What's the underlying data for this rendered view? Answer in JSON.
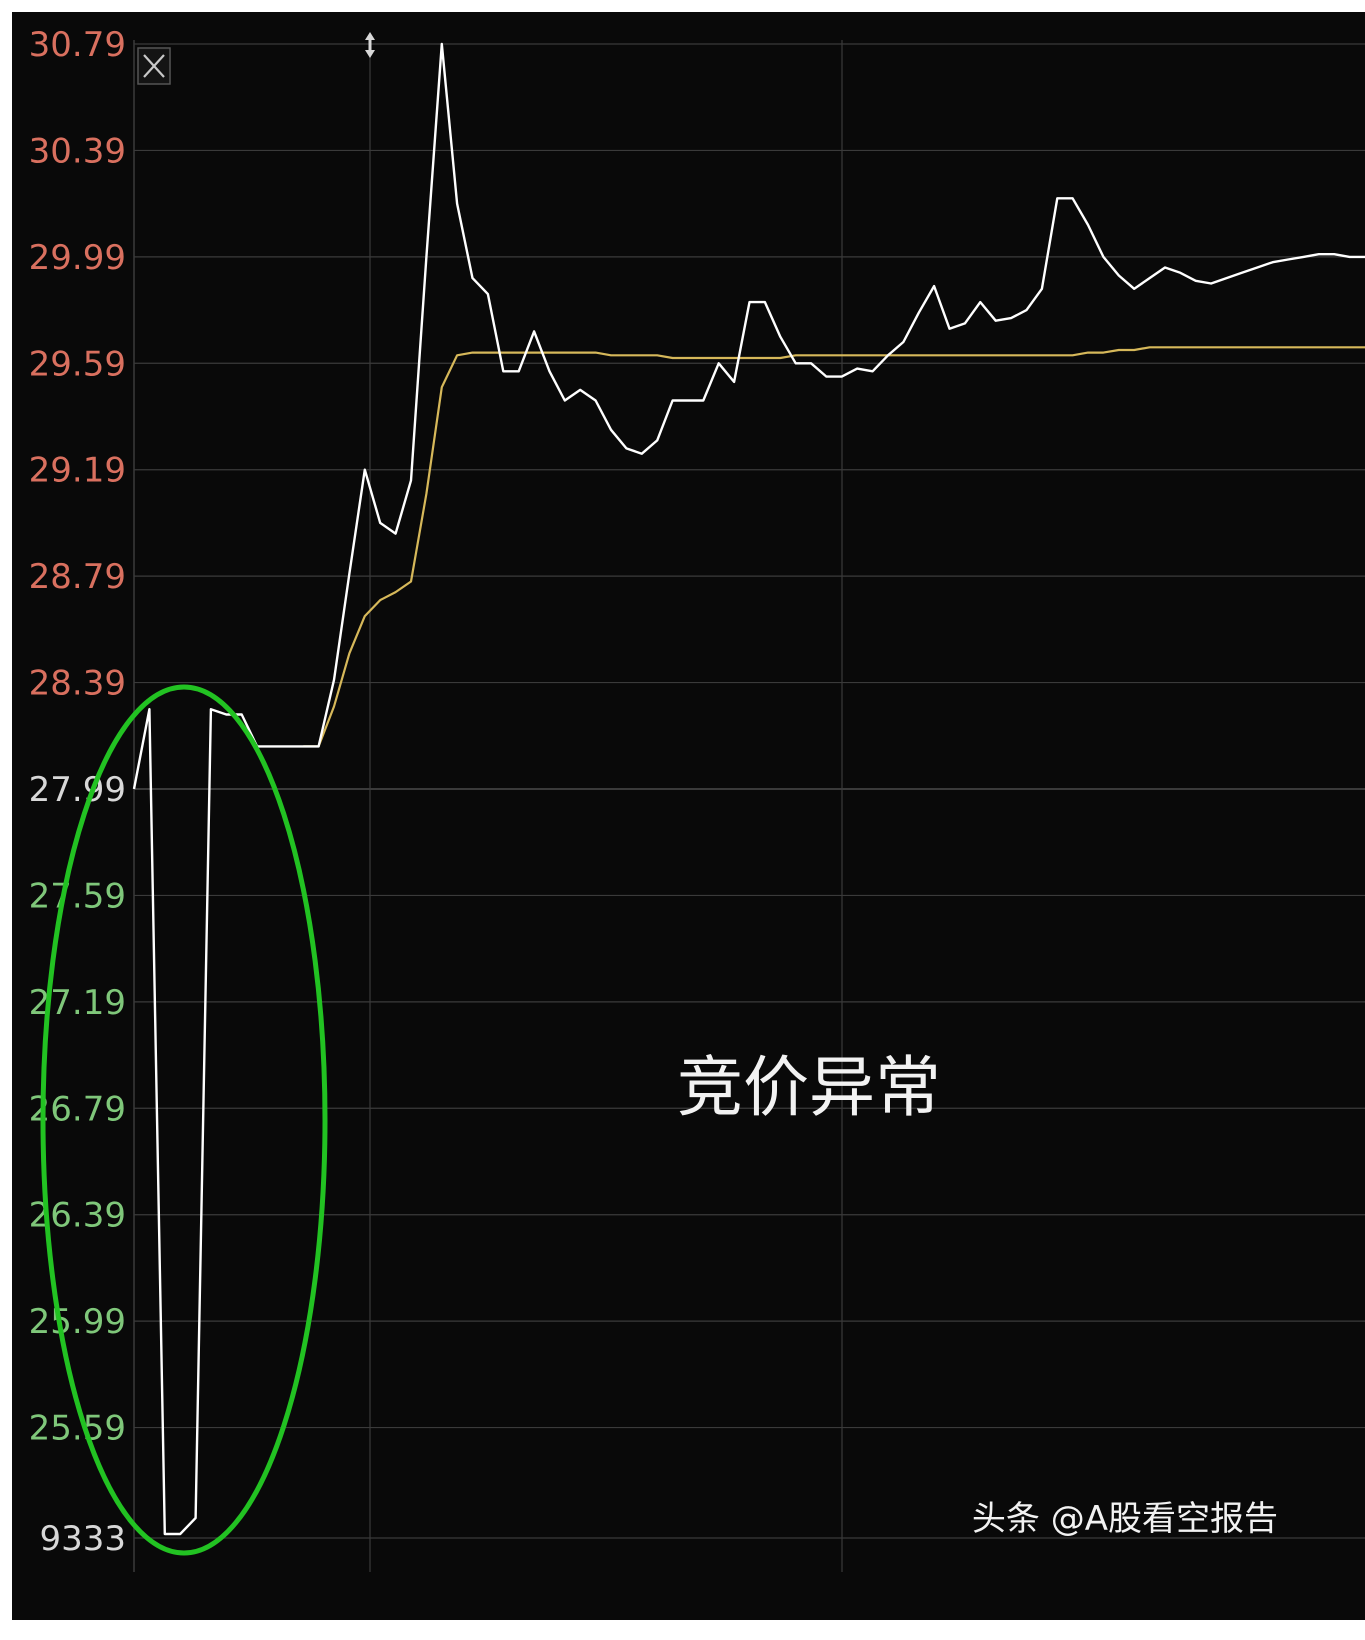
{
  "chart_data": {
    "type": "line",
    "title": "",
    "xlabel": "",
    "ylabel": "",
    "ylim": [
      25.19,
      30.79
    ],
    "y_ticks": [
      "30.79",
      "30.39",
      "29.99",
      "29.59",
      "29.19",
      "28.79",
      "28.39",
      "27.99",
      "27.59",
      "27.19",
      "26.79",
      "26.39",
      "25.99",
      "25.59"
    ],
    "y_ticks_up": [
      "30.79",
      "30.39",
      "29.99",
      "29.59",
      "29.19",
      "28.79",
      "28.39"
    ],
    "y_ticks_down": [
      "27.99",
      "27.59",
      "27.19",
      "26.79",
      "26.39",
      "25.99",
      "25.59"
    ],
    "bottom_label": "9333",
    "grid": true,
    "x": [
      0,
      3,
      6,
      9,
      12,
      15,
      18,
      21,
      24,
      27,
      30,
      33,
      36,
      39,
      42,
      45,
      48,
      51,
      54,
      57,
      60,
      63,
      66,
      69,
      72,
      75,
      78,
      81,
      84,
      87,
      90,
      93,
      96,
      99,
      102,
      105,
      108,
      111,
      114,
      117,
      120,
      123,
      126,
      129,
      132,
      135,
      138,
      141,
      144,
      147,
      150,
      153,
      156,
      159,
      162,
      165,
      168,
      171,
      174,
      177,
      180,
      183,
      186,
      189,
      192,
      195,
      198,
      201,
      204,
      207,
      210,
      213,
      216,
      219,
      222,
      225,
      228,
      231,
      234,
      237,
      240
    ],
    "series": [
      {
        "name": "",
        "color": "#ffffff",
        "values": [
          27.99,
          28.29,
          25.19,
          25.19,
          25.25,
          28.29,
          28.27,
          28.27,
          28.15,
          28.15,
          28.15,
          28.15,
          28.15,
          28.4,
          28.8,
          29.19,
          28.99,
          28.95,
          29.15,
          29.99,
          30.79,
          30.19,
          29.91,
          29.85,
          29.56,
          29.56,
          29.71,
          29.56,
          29.45,
          29.49,
          29.45,
          29.34,
          29.27,
          29.25,
          29.3,
          29.45,
          29.45,
          29.45,
          29.59,
          29.52,
          29.82,
          29.82,
          29.69,
          29.59,
          29.59,
          29.54,
          29.54,
          29.57,
          29.56,
          29.62,
          29.67,
          29.78,
          29.88,
          29.72,
          29.74,
          29.82,
          29.75,
          29.76,
          29.79,
          29.87,
          30.21,
          30.21,
          30.11,
          29.99,
          29.92,
          29.87,
          29.91,
          29.95,
          29.93,
          29.9,
          29.89,
          29.91,
          29.93,
          29.95,
          29.97,
          29.98,
          29.99,
          30.0,
          30.0,
          29.99,
          29.99
        ]
      },
      {
        "name": "",
        "color": "#d6b85a",
        "values": [
          null,
          null,
          null,
          null,
          null,
          null,
          null,
          null,
          null,
          null,
          null,
          28.15,
          28.15,
          28.3,
          28.5,
          28.64,
          28.7,
          28.73,
          28.77,
          29.1,
          29.5,
          29.62,
          29.63,
          29.63,
          29.63,
          29.63,
          29.63,
          29.63,
          29.63,
          29.63,
          29.63,
          29.62,
          29.62,
          29.62,
          29.62,
          29.61,
          29.61,
          29.61,
          29.61,
          29.61,
          29.61,
          29.61,
          29.61,
          29.62,
          29.62,
          29.62,
          29.62,
          29.62,
          29.62,
          29.62,
          29.62,
          29.62,
          29.62,
          29.62,
          29.62,
          29.62,
          29.62,
          29.62,
          29.62,
          29.62,
          29.62,
          29.62,
          29.63,
          29.63,
          29.64,
          29.64,
          29.65,
          29.65,
          29.65,
          29.65,
          29.65,
          29.65,
          29.65,
          29.65,
          29.65,
          29.65,
          29.65,
          29.65,
          29.65,
          29.65,
          29.65
        ]
      }
    ],
    "annotations": [
      {
        "text": "竞价异常",
        "color": "#f2f2f2"
      },
      {
        "text": "头条 @A股看空报告",
        "color": "#f2f2f2"
      }
    ],
    "highlight_ellipse_color": "#22c222",
    "colors": {
      "up_label": "#d9705f",
      "down_label": "#7fc77a",
      "neutral_label": "#d8d8d8",
      "grid": "#3a3a3a",
      "background": "#090909"
    }
  }
}
